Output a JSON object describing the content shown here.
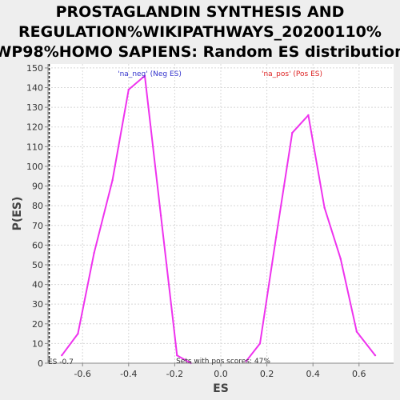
{
  "chart_data": {
    "type": "line",
    "title_lines": [
      "PROSTAGLANDIN SYNTHESIS AND",
      "REGULATION%WIKIPATHWAYS_20200110%",
      "WP98%HOMO SAPIENS: Random ES distribution"
    ],
    "xlabel": "ES",
    "ylabel": "P(ES)",
    "xlim": [
      -0.75,
      0.75
    ],
    "ylim": [
      0,
      152
    ],
    "xticks": [
      -0.6,
      -0.4,
      -0.2,
      0.0,
      0.2,
      0.4,
      0.6
    ],
    "xtick_labels": [
      "-0.6",
      "-0.4",
      "-0.2",
      "0.0",
      "0.2",
      "0.4",
      "0.6"
    ],
    "yticks": [
      0,
      10,
      20,
      30,
      40,
      50,
      60,
      70,
      80,
      90,
      100,
      110,
      120,
      130,
      140,
      150
    ],
    "ytick_labels": [
      "0",
      "10",
      "20",
      "30",
      "40",
      "50",
      "60",
      "70",
      "80",
      "90",
      "100",
      "110",
      "120",
      "130",
      "140",
      "150"
    ],
    "grid": true,
    "series": [
      {
        "name": "'na_neg' (Neg ES)",
        "color": "#ee33ee",
        "x": [
          -0.69,
          -0.62,
          -0.55,
          -0.47,
          -0.4,
          -0.33,
          -0.26,
          -0.19,
          -0.13
        ],
        "y": [
          4,
          15,
          56,
          93,
          139,
          146,
          75,
          4,
          0
        ]
      },
      {
        "name": "'na_pos' (Pos ES)",
        "color": "#ee33ee",
        "x": [
          0.11,
          0.17,
          0.24,
          0.31,
          0.38,
          0.45,
          0.52,
          0.59,
          0.67
        ],
        "y": [
          1,
          10,
          64,
          117,
          126,
          79,
          53,
          16,
          4
        ]
      }
    ],
    "legend": [
      {
        "text": "'na_neg' (Neg ES)",
        "color": "#3333cc"
      },
      {
        "text": "'na_pos' (Pos ES)",
        "color": "#dd2222"
      }
    ],
    "annotations": {
      "es_marker": "ES -0.7",
      "pos_scores": "Sets with pos scores: 47%"
    }
  }
}
